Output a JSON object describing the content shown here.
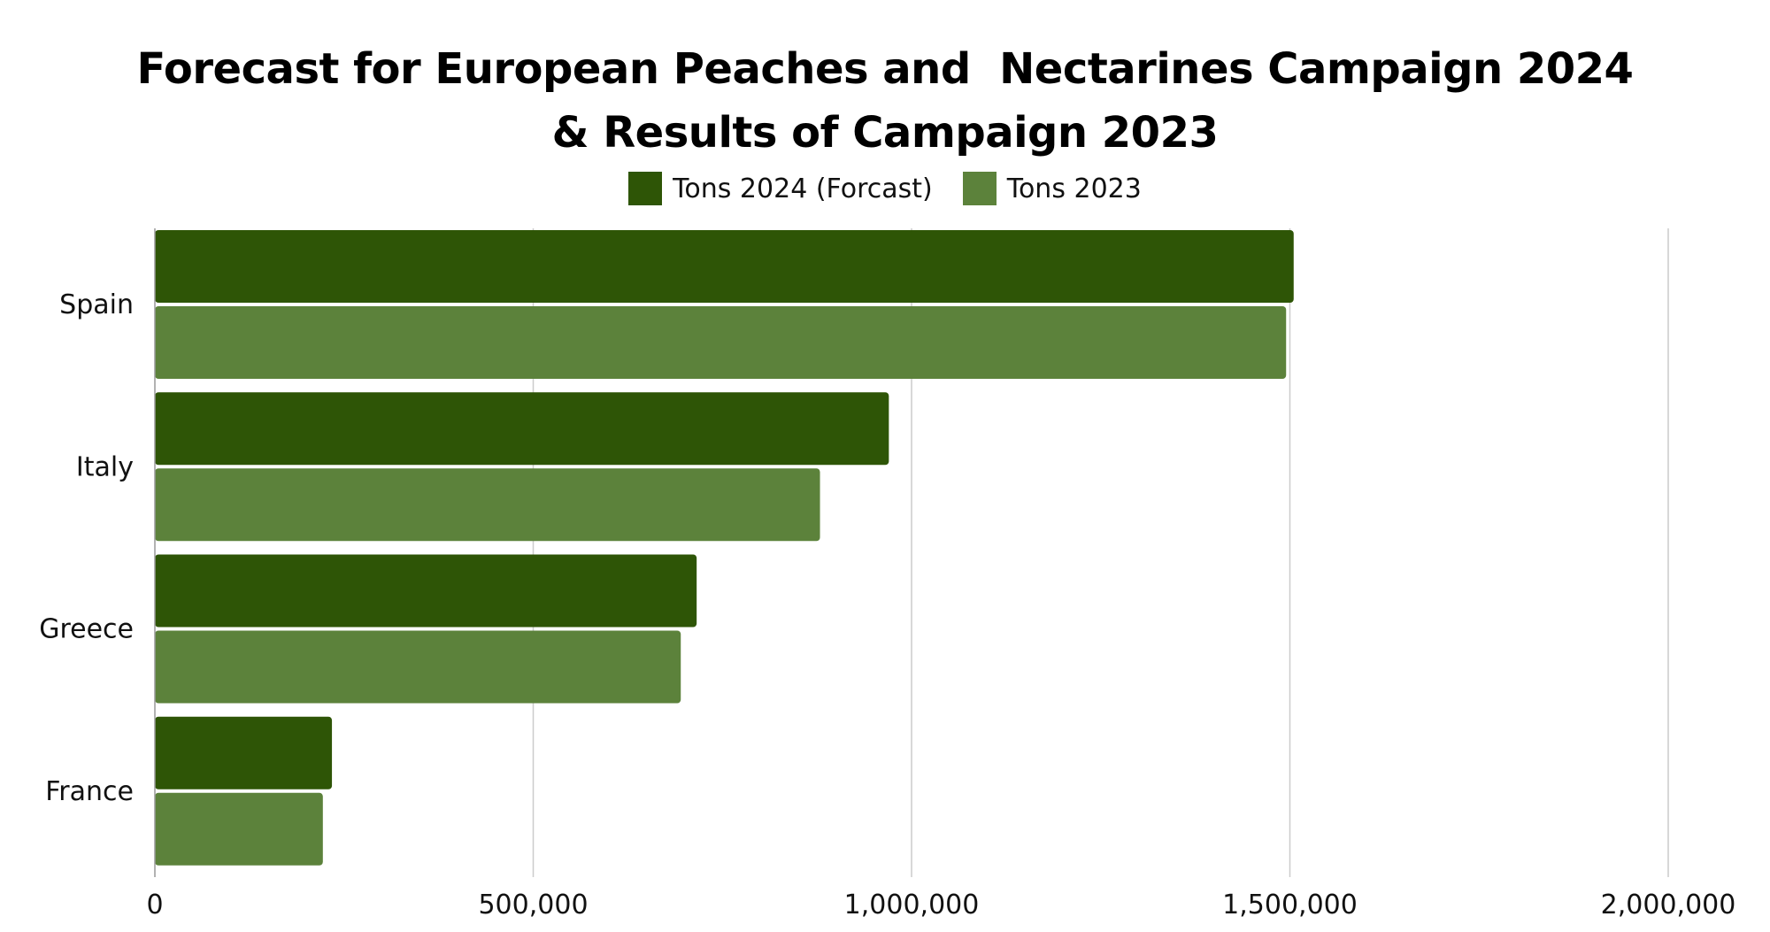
{
  "chart_data": {
    "type": "bar",
    "orientation": "horizontal",
    "title": "Forecast for European Peaches and  Nectarines Campaign 2024",
    "subtitle": "& Results of Campaign 2023",
    "categories": [
      "Spain",
      "Italy",
      "Greece",
      "France"
    ],
    "series": [
      {
        "name": "Tons 2024 (Forcast)",
        "color": "#2e5506",
        "values": [
          1505000,
          970000,
          716000,
          234000
        ]
      },
      {
        "name": "Tons 2023",
        "color": "#5c823b",
        "values": [
          1495000,
          879000,
          695000,
          222000
        ]
      }
    ],
    "xlim": [
      0,
      2000000
    ],
    "xticks": [
      0,
      500000,
      1000000,
      1500000,
      2000000
    ],
    "xtick_labels": [
      "0",
      "500,000",
      "1,000,000",
      "1,500,000",
      "2,000,000"
    ],
    "grid": true,
    "legend_position": "top"
  }
}
